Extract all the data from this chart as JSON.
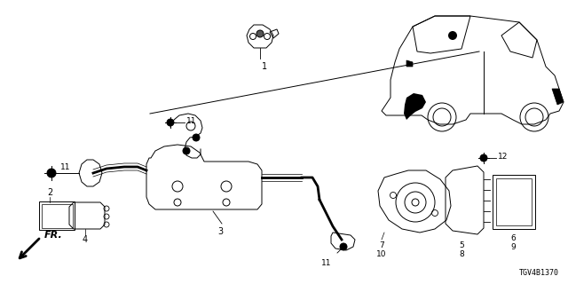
{
  "bg_color": "#ffffff",
  "diagram_id": "TGV4B1370",
  "lw": 0.7
}
